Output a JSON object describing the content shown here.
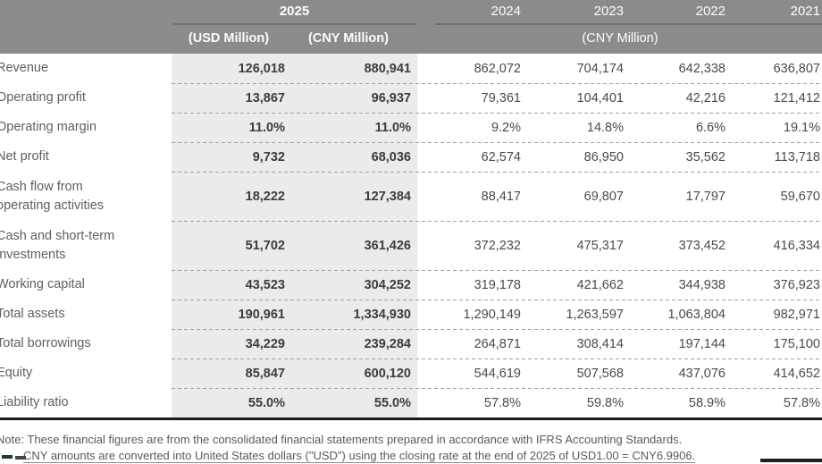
{
  "header": {
    "year_current": "2025",
    "col_usd": "(USD Million)",
    "col_cny": "(CNY Million)",
    "years": [
      "2024",
      "2023",
      "2022",
      "2021"
    ],
    "units_right": "(CNY Million)"
  },
  "table": {
    "rows": [
      {
        "label": "Revenue",
        "usd": "126,018",
        "cny": "880,941",
        "y2024": "862,072",
        "y2023": "704,174",
        "y2022": "642,338",
        "y2021": "636,807"
      },
      {
        "label": "Operating profit",
        "usd": "13,867",
        "cny": "96,937",
        "y2024": "79,361",
        "y2023": "104,401",
        "y2022": "42,216",
        "y2021": "121,412"
      },
      {
        "label": "Operating margin",
        "usd": "11.0%",
        "cny": "11.0%",
        "y2024": "9.2%",
        "y2023": "14.8%",
        "y2022": "6.6%",
        "y2021": "19.1%"
      },
      {
        "label": "Net profit",
        "usd": "9,732",
        "cny": "68,036",
        "y2024": "62,574",
        "y2023": "86,950",
        "y2022": "35,562",
        "y2021": "113,718"
      },
      {
        "label": "Cash flow from\n operating activities",
        "usd": "18,222",
        "cny": "127,384",
        "y2024": "88,417",
        "y2023": "69,807",
        "y2022": "17,797",
        "y2021": "59,670"
      },
      {
        "label": "Cash and short-term\n investments",
        "usd": "51,702",
        "cny": "361,426",
        "y2024": "372,232",
        "y2023": "475,317",
        "y2022": "373,452",
        "y2021": "416,334"
      },
      {
        "label": "Working capital",
        "usd": "43,523",
        "cny": "304,252",
        "y2024": "319,178",
        "y2023": "421,662",
        "y2022": "344,938",
        "y2021": "376,923"
      },
      {
        "label": "Total assets",
        "usd": "190,961",
        "cny": "1,334,930",
        "y2024": "1,290,149",
        "y2023": "1,263,597",
        "y2022": "1,063,804",
        "y2021": "982,971"
      },
      {
        "label": "Total borrowings",
        "usd": "34,229",
        "cny": "239,284",
        "y2024": "264,871",
        "y2023": "308,414",
        "y2022": "197,144",
        "y2021": "175,100"
      },
      {
        "label": "Equity",
        "usd": "85,847",
        "cny": "600,120",
        "y2024": "544,619",
        "y2023": "507,568",
        "y2022": "437,076",
        "y2021": "414,652"
      },
      {
        "label": "Liability ratio",
        "usd": "55.0%",
        "cny": "55.0%",
        "y2024": "57.8%",
        "y2023": "59.8%",
        "y2022": "58.9%",
        "y2021": "57.8%"
      }
    ]
  },
  "note": {
    "line1": "Note: These financial figures are from the consolidated financial statements prepared in accordance with IFRS Accounting Standards.",
    "line2": "CNY amounts are converted into United States dollars (\"USD\") using the closing rate at the end of 2025 of USD1.00 = CNY6.9906."
  },
  "colors": {
    "header_bg": "#8b8b8b",
    "header_text": "#fdfdfd",
    "highlight_column_bg": "#ebebeb",
    "body_text": "#4a4a4a",
    "thick_rule": "#1b1b1b"
  }
}
